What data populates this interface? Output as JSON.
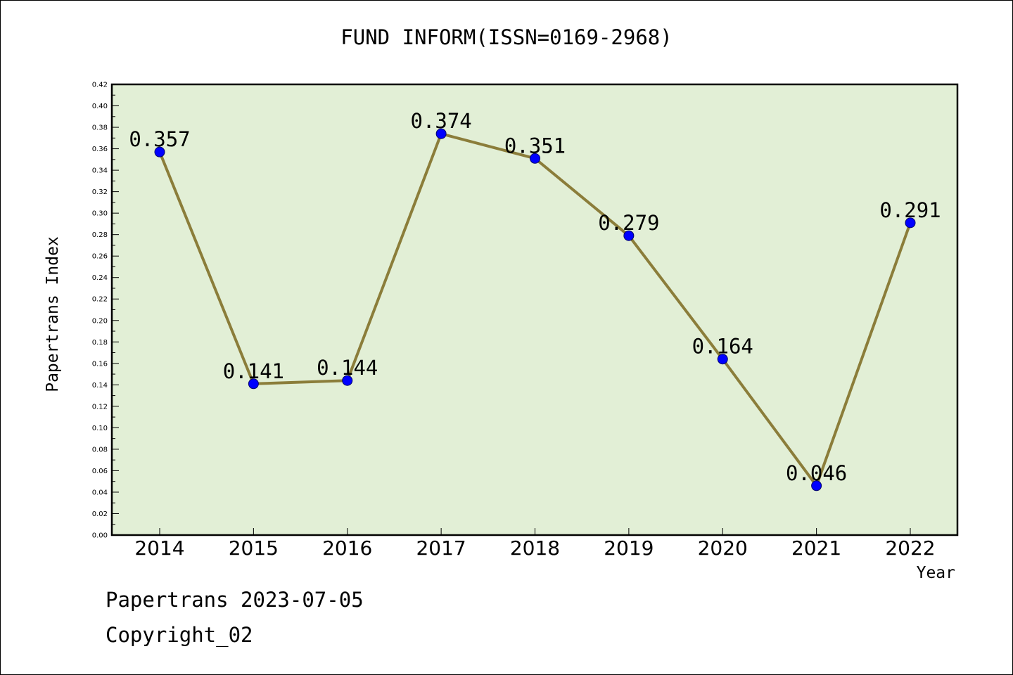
{
  "chart_data": {
    "type": "line",
    "title": "FUND INFORM(ISSN=0169-2968)",
    "xlabel": "Year",
    "ylabel": "Papertrans Index",
    "categories": [
      "2014",
      "2015",
      "2016",
      "2017",
      "2018",
      "2019",
      "2020",
      "2021",
      "2022"
    ],
    "series": [
      {
        "values": [
          0.357,
          0.141,
          0.144,
          0.374,
          0.351,
          0.279,
          0.164,
          0.046,
          0.291
        ],
        "labels": [
          "0.357",
          "0.141",
          "0.144",
          "0.374",
          "0.351",
          "0.279",
          "0.164",
          "0.046",
          "0.291"
        ],
        "line_color": "#8b7d3a",
        "marker_color": "#0000ff"
      }
    ],
    "ylim": [
      0,
      0.42
    ],
    "yticks": [
      "0.00",
      "0.02",
      "0.04",
      "0.06",
      "0.08",
      "0.10",
      "0.12",
      "0.14",
      "0.16",
      "0.18",
      "0.20",
      "0.22",
      "0.24",
      "0.26",
      "0.28",
      "0.30",
      "0.32",
      "0.34",
      "0.36",
      "0.38",
      "0.40",
      "0.42"
    ],
    "plot_background": "#e2efd6",
    "grid": false,
    "legend": "none"
  },
  "footer": {
    "date_line": "Papertrans 2023-07-05",
    "copyright_line": "Copyright_02"
  }
}
